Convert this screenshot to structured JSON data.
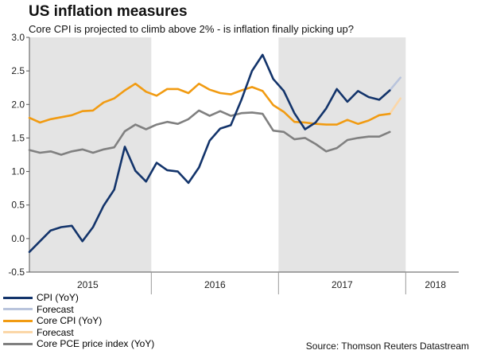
{
  "title": "US inflation measures",
  "subtitle": "Core CPI is projected to climb above 2% - is inflation finally picking up?",
  "source": "Source: Thomson Reuters Datastream",
  "colors": {
    "cpi": "#13346b",
    "cpi_forecast": "#b9c4dc",
    "core_cpi": "#f19b12",
    "core_cpi_forecast": "#fbd7a8",
    "core_pce": "#808080",
    "shade": "#e4e4e4",
    "axis": "#555555"
  },
  "legend": [
    {
      "label": "CPI (YoY)",
      "color_key": "cpi"
    },
    {
      "label": "Forecast",
      "color_key": "cpi_forecast"
    },
    {
      "label": "Core CPI (YoY)",
      "color_key": "core_cpi"
    },
    {
      "label": "Forecast",
      "color_key": "core_cpi_forecast"
    },
    {
      "label": "Core PCE price index (YoY)",
      "color_key": "core_pce"
    }
  ],
  "chart_data": {
    "type": "line",
    "title": "US inflation measures",
    "xlabel": "",
    "ylabel": "",
    "ylim": [
      -0.5,
      3.0
    ],
    "yticks": [
      -0.5,
      0.0,
      0.5,
      1.0,
      1.5,
      2.0,
      2.5,
      3.0
    ],
    "ytick_labels": [
      "-0.5",
      "0.0",
      "0.5",
      "1.0",
      "1.5",
      "2.0",
      "2.5",
      "3.0"
    ],
    "x_domain": [
      0,
      40.5
    ],
    "year_labels": [
      {
        "label": "2015",
        "x": 5.5
      },
      {
        "label": "2016",
        "x": 17.5
      },
      {
        "label": "2017",
        "x": 29.5
      },
      {
        "label": "2018",
        "x": 38.3
      }
    ],
    "year_boundaries": [
      11.5,
      23.5,
      35.5
    ],
    "shaded_periods": [
      [
        -0.5,
        11.5
      ],
      [
        23.5,
        35.5
      ]
    ],
    "series": [
      {
        "name": "CPI (YoY)",
        "color_key": "cpi",
        "x_start": 0,
        "values": [
          -0.2,
          -0.04,
          0.12,
          0.17,
          0.19,
          -0.04,
          0.17,
          0.49,
          0.73,
          1.37,
          1.01,
          0.85,
          1.13,
          1.02,
          1.0,
          0.83,
          1.06,
          1.46,
          1.64,
          1.69,
          2.07,
          2.5,
          2.74,
          2.38,
          2.2,
          1.87,
          1.63,
          1.73,
          1.94,
          2.23,
          2.04,
          2.2,
          2.11,
          2.07,
          2.21
        ]
      },
      {
        "name": "CPI Forecast",
        "color_key": "cpi_forecast",
        "x_start": 34,
        "dashed": false,
        "values": [
          2.21,
          2.4
        ]
      },
      {
        "name": "Core CPI (YoY)",
        "color_key": "core_cpi",
        "x_start": 0,
        "values": [
          1.8,
          1.73,
          1.78,
          1.81,
          1.84,
          1.9,
          1.91,
          2.03,
          2.09,
          2.21,
          2.31,
          2.19,
          2.13,
          2.23,
          2.23,
          2.17,
          2.31,
          2.22,
          2.17,
          2.15,
          2.21,
          2.26,
          2.2,
          1.99,
          1.89,
          1.74,
          1.73,
          1.71,
          1.7,
          1.7,
          1.77,
          1.71,
          1.76,
          1.84,
          1.86
        ]
      },
      {
        "name": "Core CPI Forecast",
        "color_key": "core_cpi_forecast",
        "x_start": 34,
        "values": [
          1.86,
          2.09
        ]
      },
      {
        "name": "Core PCE price index (YoY)",
        "color_key": "core_pce",
        "x_start": 0,
        "values": [
          1.32,
          1.28,
          1.3,
          1.25,
          1.3,
          1.33,
          1.28,
          1.33,
          1.36,
          1.6,
          1.7,
          1.63,
          1.7,
          1.74,
          1.71,
          1.78,
          1.91,
          1.83,
          1.9,
          1.83,
          1.87,
          1.88,
          1.86,
          1.61,
          1.59,
          1.48,
          1.5,
          1.41,
          1.3,
          1.35,
          1.47,
          1.5,
          1.52,
          1.52,
          1.59
        ]
      }
    ]
  }
}
